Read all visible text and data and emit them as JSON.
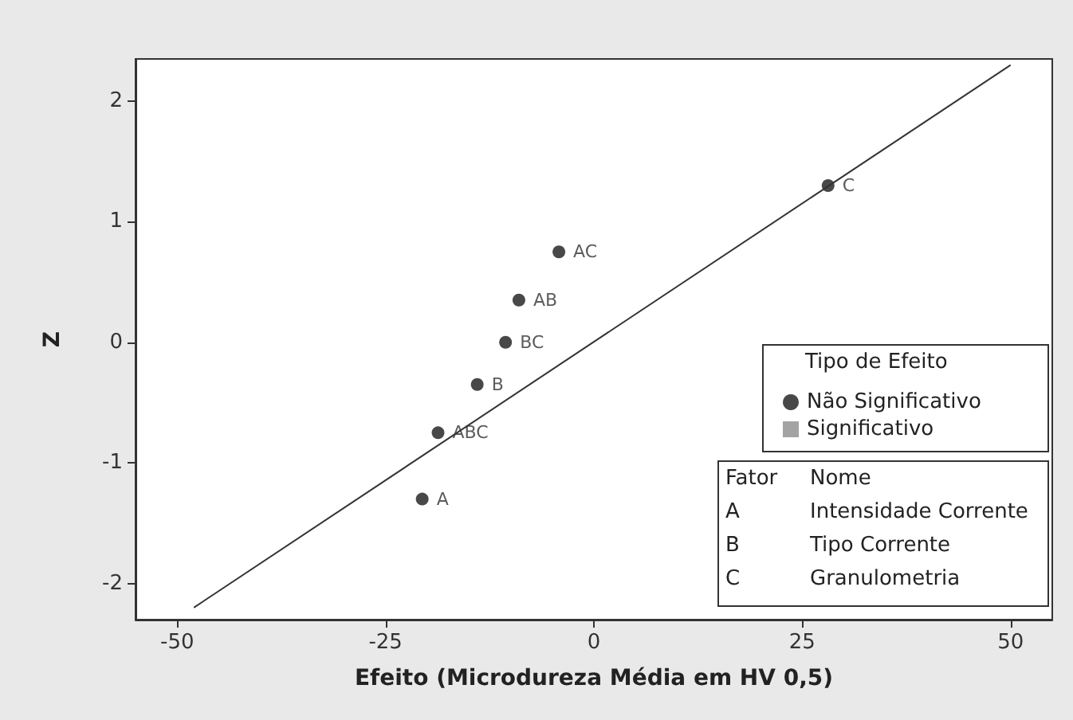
{
  "chart_data": {
    "type": "scatter",
    "xlabel": "Efeito (Microdureza Média em HV 0,5)",
    "ylabel": "Z",
    "xlim": [
      -55,
      55
    ],
    "ylim": [
      -2.3,
      2.35
    ],
    "xticks": [
      -50,
      -25,
      0,
      25,
      50
    ],
    "yticks": [
      -2,
      -1,
      0,
      1,
      2
    ],
    "grid": false,
    "legend": "bottom right",
    "legend_title": "Tipo de Efeito",
    "series": [
      {
        "name": "Não Significativo",
        "color": "#1a1a1a",
        "marker": "circle",
        "x": [
          -20.6,
          -18.7,
          -14.0,
          -10.6,
          -9.0,
          -4.2,
          28.1
        ],
        "values": [
          -1.3,
          -0.75,
          -0.35,
          0,
          0.35,
          0.75,
          1.3
        ],
        "value_labels": [
          "A",
          "ABC",
          "B",
          "BC",
          "AB",
          "AC",
          "C"
        ]
      },
      {
        "name": "Significativo",
        "color": "#8c8c8c",
        "marker": "square"
      },
      {
        "type": "line",
        "color": "#333333",
        "marker": "none",
        "x": [
          -48,
          50
        ],
        "values": [
          -2.2,
          2.3
        ]
      }
    ],
    "annotations": [
      "Fator",
      "Nome",
      "A",
      "Intensidade Corrente",
      "B",
      "Tipo Corrente",
      "C",
      "Granulometria"
    ]
  }
}
